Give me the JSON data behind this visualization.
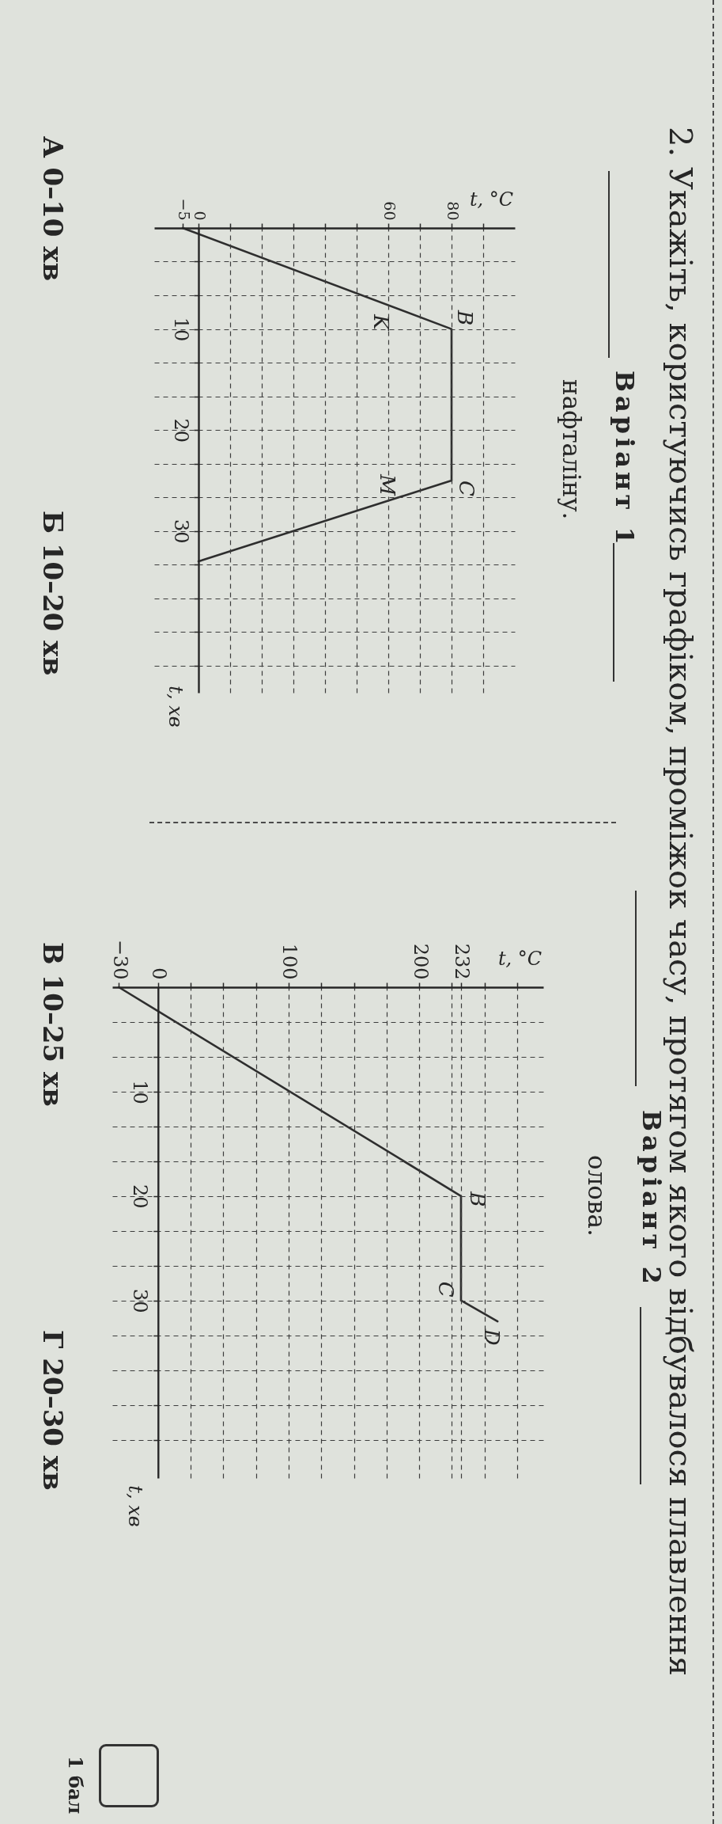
{
  "chart_data": [
    {
      "type": "other",
      "title": "2. Укажіть, користуючись графіком, проміжок часу, протягом якого відбувалося плавлення",
      "annotations": [
        "Варіант 1",
        "нафталіну.",
        "Варіант 2",
        "олова.",
        "А 0–10 хв",
        "Б 10–20 хв",
        "В 10–25 хв",
        "Г 20–30 хв",
        "1 бал"
      ]
    },
    {
      "type": "line",
      "xlabel": "t, °C",
      "ylabel": "t, хв",
      "x": [
        -5,
        80,
        80,
        0
      ],
      "values": [
        0,
        10,
        25,
        33
      ],
      "color": "#2e2e2e",
      "xlim": [
        -14,
        100
      ],
      "ylim": [
        46,
        0
      ],
      "xticks": [
        -5,
        0,
        {
          "value": 10,
          "label": null
        },
        {
          "value": 20,
          "label": null
        },
        {
          "value": 30,
          "label": null
        },
        {
          "value": 40,
          "label": null
        },
        {
          "value": 50,
          "label": null
        },
        60,
        {
          "value": 70,
          "label": null
        },
        80,
        {
          "value": 90,
          "label": null
        }
      ],
      "yticks": [
        {
          "value": 3.33,
          "label": null
        },
        {
          "value": 6.67,
          "label": null
        },
        10,
        {
          "value": 13.33,
          "label": null
        },
        {
          "value": 16.67,
          "label": null
        },
        20,
        {
          "value": 23.33,
          "label": null
        },
        {
          "value": 26.67,
          "label": null
        },
        30,
        {
          "value": 33.33,
          "label": null
        },
        {
          "value": 36.67,
          "label": null
        },
        {
          "value": 40,
          "label": null
        },
        {
          "value": 43.33,
          "label": null
        }
      ],
      "grid": true,
      "annotations": [
        {
          "text": "B",
          "x": 80,
          "y": 10
        },
        {
          "text": "C",
          "x": 80,
          "y": 25
        },
        {
          "text": "K",
          "x": 60,
          "y": 7.6
        },
        {
          "text": "M",
          "x": 60,
          "y": 27
        }
      ]
    },
    {
      "type": "line",
      "xlabel": "t, °C",
      "ylabel": "t, хв",
      "x": [
        -30,
        232,
        232,
        260
      ],
      "values": [
        0,
        20,
        30,
        32
      ],
      "color": "#2e2e2e",
      "xlim": [
        -35,
        295
      ],
      "ylim": [
        47,
        0
      ],
      "xticks": [
        -30,
        0,
        {
          "value": 25,
          "label": null
        },
        {
          "value": 50,
          "label": null
        },
        {
          "value": 75,
          "label": null
        },
        100,
        {
          "value": 125,
          "label": null
        },
        {
          "value": 150,
          "label": null
        },
        {
          "value": 175,
          "label": null
        },
        200,
        {
          "value": 225,
          "label": null
        },
        232,
        {
          "value": 250,
          "label": null
        },
        {
          "value": 275,
          "label": null
        }
      ],
      "yticks": [
        {
          "value": 3.33,
          "label": null
        },
        {
          "value": 6.67,
          "label": null
        },
        10,
        {
          "value": 13.33,
          "label": null
        },
        {
          "value": 16.67,
          "label": null
        },
        20,
        {
          "value": 23.33,
          "label": null
        },
        {
          "value": 26.67,
          "label": null
        },
        30,
        {
          "value": 33.33,
          "label": null
        },
        {
          "value": 36.67,
          "label": null
        },
        {
          "value": 40,
          "label": null
        },
        {
          "value": 43.33,
          "label": null
        }
      ],
      "grid": true,
      "annotations": [
        {
          "text": "B",
          "x": 232,
          "y": 20
        },
        {
          "text": "C",
          "x": 232,
          "y": 30
        },
        {
          "text": "D",
          "x": 260,
          "y": 32
        }
      ]
    }
  ]
}
